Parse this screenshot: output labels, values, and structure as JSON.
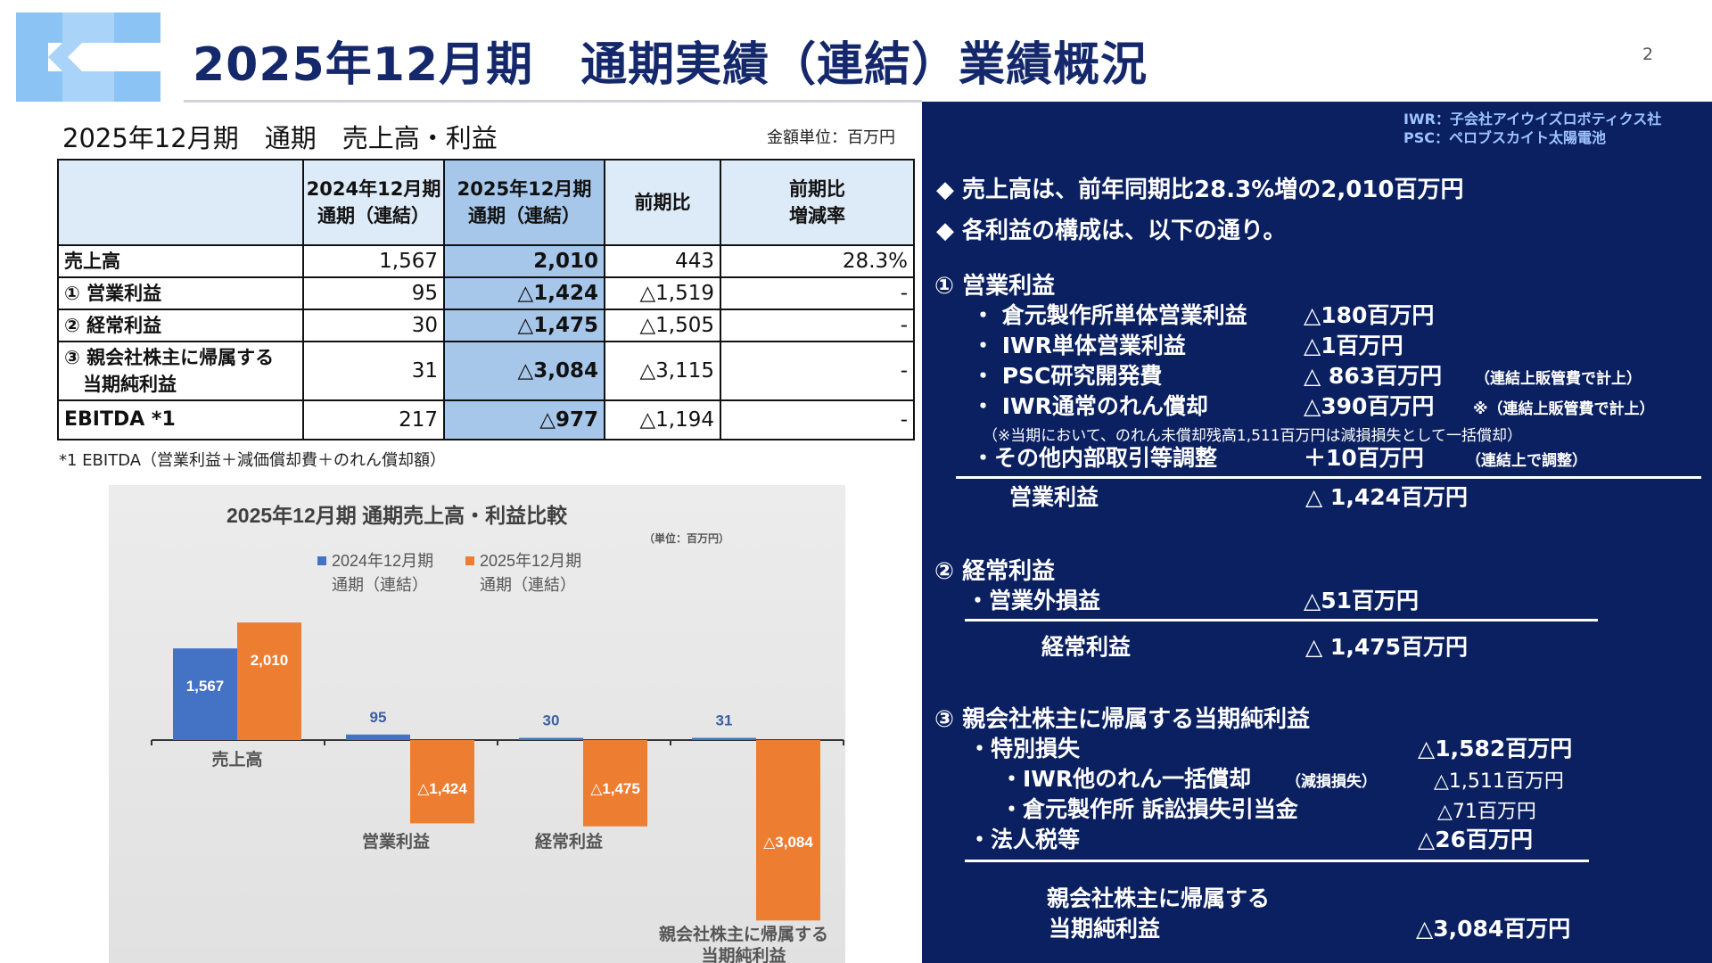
{
  "header": {
    "title": "2025年12月期　通期実績（連結）業績概況",
    "page_number": "2"
  },
  "section": {
    "title": "2025年12月期　通期　売上高・利益",
    "unit_note": "金額単位：百万円"
  },
  "table": {
    "headers": [
      "",
      "2024年12月期\n通期（連結）",
      "2025年12月期\n通期（連結）",
      "前期比",
      "前期比\n増減率"
    ],
    "rows": [
      {
        "label": "売上高",
        "prev": "1,567",
        "curr": "2,010",
        "diff": "443",
        "rate": "28.3%"
      },
      {
        "label": "① 営業利益",
        "prev": "95",
        "curr": "△1,424",
        "diff": "△1,519",
        "rate": "-"
      },
      {
        "label": "② 経常利益",
        "prev": "30",
        "curr": "△1,475",
        "diff": "△1,505",
        "rate": "-"
      },
      {
        "label": "③ 親会社株主に帰属する\n　当期純利益",
        "prev": "31",
        "curr": "△3,084",
        "diff": "△3,115",
        "rate": "-"
      },
      {
        "label": "EBITDA *1",
        "prev": "217",
        "curr": "△977",
        "diff": "△1,194",
        "rate": "-"
      }
    ],
    "footnote": "*1 EBITDA（営業利益＋減価償却費＋のれん償却額）"
  },
  "chart_data": {
    "type": "bar",
    "title": "2025年12月期 通期売上高・利益比較",
    "unit_label": "（単位：百万円）",
    "categories": [
      "売上高",
      "営業利益",
      "経常利益",
      "親会社株主に帰属する\n当期純利益"
    ],
    "series": [
      {
        "name": "2024年12月期\n通期（連結）",
        "values": [
          1567,
          95,
          30,
          31
        ],
        "labels": [
          "1,567",
          "95",
          "30",
          "31"
        ],
        "color": "#4472c4"
      },
      {
        "name": "2025年12月期\n通期（連結）",
        "values": [
          2010,
          -1424,
          -1475,
          -3084
        ],
        "labels": [
          "2,010",
          "△1,424",
          "△1,475",
          "△3,084"
        ],
        "color": "#ed7d31"
      }
    ],
    "legend": "top",
    "grid": false
  },
  "right_panel": {
    "abbr_iwr": "IWR：子会社アイウイズロボティクス社",
    "abbr_psc": "PSC：ペロブスカイト太陽電池",
    "bullet1": "◆ 売上高は、前年同期比28.3%増の2,010百万円",
    "bullet2": "◆ 各利益の構成は、以下の通り。",
    "op": {
      "heading": "① 営業利益",
      "items": [
        {
          "label": "・ 倉元製作所単体営業利益",
          "value": "△180百万円",
          "note": ""
        },
        {
          "label": "・ IWR単体営業利益",
          "value": "△1百万円",
          "note": ""
        },
        {
          "label": "・ PSC研究開発費",
          "value": "△ 863百万円",
          "note": "（連結上販管費で計上）"
        },
        {
          "label": "・ IWR通常のれん償却",
          "value": "△390百万円",
          "note": "※（連結上販管費で計上）"
        }
      ],
      "goodwill_note": "（※当期において、のれん未償却残高1,511百万円は減損損失として一括償却）",
      "other_label": "・その他内部取引等調整",
      "other_value": "＋10百万円",
      "other_note": "（連結上で調整）",
      "total_label": "営業利益",
      "total_value": "△ 1,424百万円"
    },
    "ord": {
      "heading": "② 経常利益",
      "item_label": "・営業外損益",
      "item_value": "△51百万円",
      "total_label": "経常利益",
      "total_value": "△ 1,475百万円"
    },
    "net": {
      "heading": "③ 親会社株主に帰属する当期純利益",
      "special_label": "・特別損失",
      "special_value": "△1,582百万円",
      "sub1_label": "・IWR他のれん一括償却",
      "sub1_note": "（減損損失）",
      "sub1_value": "△1,511百万円",
      "sub2_label": "・倉元製作所 訴訟損失引当金",
      "sub2_value": "△71百万円",
      "tax_label": "・法人税等",
      "tax_value": "△26百万円",
      "total_label1": "親会社株主に帰属する",
      "total_label2": "当期純利益",
      "total_value": "△3,084百万円"
    }
  }
}
